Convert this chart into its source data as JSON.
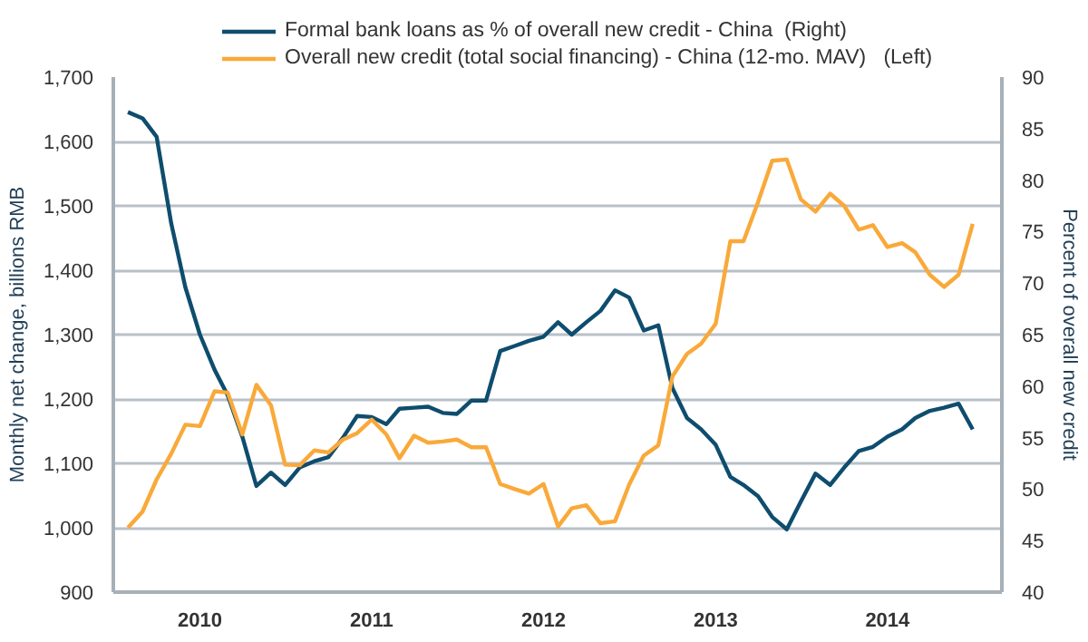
{
  "chart_data": {
    "type": "line",
    "ylabel": "Monthly net change, billions RMB",
    "y2label": "Percent of overall new credit",
    "x": [
      "2009-08",
      "2009-09",
      "2009-10",
      "2009-11",
      "2009-12",
      "2010-01",
      "2010-02",
      "2010-03",
      "2010-04",
      "2010-05",
      "2010-06",
      "2010-07",
      "2010-08",
      "2010-09",
      "2010-10",
      "2010-11",
      "2010-12",
      "2011-01",
      "2011-02",
      "2011-03",
      "2011-04",
      "2011-05",
      "2011-06",
      "2011-07",
      "2011-08",
      "2011-09",
      "2011-10",
      "2011-11",
      "2011-12",
      "2012-01",
      "2012-02",
      "2012-03",
      "2012-04",
      "2012-05",
      "2012-06",
      "2012-07",
      "2012-08",
      "2012-09",
      "2012-10",
      "2012-11",
      "2012-12",
      "2013-01",
      "2013-02",
      "2013-03",
      "2013-04",
      "2013-05",
      "2013-06",
      "2013-07",
      "2013-08",
      "2013-09",
      "2013-10",
      "2013-11",
      "2013-12",
      "2014-01",
      "2014-02",
      "2014-03",
      "2014-04",
      "2014-05",
      "2014-06",
      "2014-07"
    ],
    "series": [
      {
        "name": "Formal bank loans as % of overall new credit - China  (Right)",
        "color": "#0e4d6e",
        "axis": "y2",
        "values": [
          86.6,
          86.0,
          84.2,
          75.8,
          69.6,
          65.0,
          61.6,
          59.1,
          55.1,
          50.3,
          51.6,
          50.4,
          52.1,
          52.7,
          53.1,
          55.0,
          57.1,
          57.0,
          56.3,
          57.8,
          57.9,
          58.0,
          57.4,
          57.3,
          58.6,
          58.6,
          63.4,
          63.9,
          64.4,
          64.8,
          66.2,
          65.0,
          66.2,
          67.3,
          69.3,
          68.6,
          65.4,
          65.9,
          59.8,
          56.9,
          55.8,
          54.3,
          51.2,
          50.4,
          49.3,
          47.3,
          46.1,
          48.8,
          51.5,
          50.4,
          52.1,
          53.7,
          54.1,
          55.1,
          55.8,
          56.9,
          57.6,
          57.9,
          58.3,
          55.8
        ]
      },
      {
        "name": "Overall new credit (total social financing) - China (12-mo. MAV)   (Left)",
        "color": "#f9a93a",
        "values": [
          1000,
          1025,
          1075,
          1115,
          1160,
          1158,
          1212,
          1210,
          1145,
          1222,
          1190,
          1098,
          1097,
          1120,
          1117,
          1137,
          1147,
          1168,
          1145,
          1108,
          1143,
          1132,
          1134,
          1137,
          1125,
          1125,
          1068,
          1060,
          1053,
          1068,
          1002,
          1030,
          1035,
          1007,
          1010,
          1067,
          1112,
          1128,
          1235,
          1270,
          1286,
          1317,
          1445,
          1445,
          1506,
          1570,
          1572,
          1510,
          1491,
          1519,
          1500,
          1463,
          1470,
          1436,
          1442,
          1428,
          1393,
          1374,
          1393,
          1472
        ]
      }
    ],
    "xlim": [
      "2009-07",
      "2014-09"
    ],
    "xticks": [
      {
        "value": "2010",
        "label": "2010"
      },
      {
        "value": "2011",
        "label": "2011"
      },
      {
        "value": "2012",
        "label": "2012"
      },
      {
        "value": "2013",
        "label": "2013"
      },
      {
        "value": "2014",
        "label": "2014"
      }
    ],
    "ylim": [
      900,
      1700
    ],
    "yticks": [
      900,
      {
        "value": 1000,
        "label": "1,000"
      },
      {
        "value": 1100,
        "label": "1,100"
      },
      {
        "value": 1200,
        "label": "1,200"
      },
      {
        "value": 1300,
        "label": "1,300"
      },
      {
        "value": 1400,
        "label": "1,400"
      },
      {
        "value": 1500,
        "label": "1,500"
      },
      {
        "value": 1600,
        "label": "1,600"
      },
      {
        "value": 1700,
        "label": "1,700"
      }
    ],
    "y2lim": [
      40,
      90
    ],
    "y2ticks": [
      40,
      45,
      50,
      55,
      60,
      65,
      70,
      75,
      80,
      85,
      90
    ],
    "grid": "y",
    "legend": "top",
    "marker": "none",
    "line_style": "solid"
  }
}
